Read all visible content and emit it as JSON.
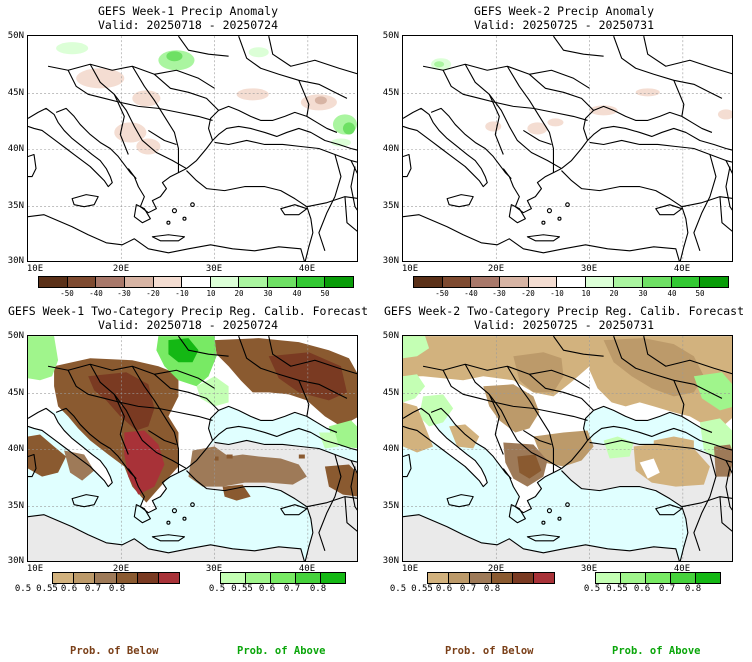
{
  "panels": [
    {
      "title": "GEFS Week-1 Precip Anomaly",
      "valid": "Valid: 20250718 - 20250724"
    },
    {
      "title": "GEFS Week-2 Precip Anomaly",
      "valid": "Valid: 20250725 - 20250731"
    },
    {
      "title": "GEFS Week-1 Two-Category Precip Reg. Calib. Forecast",
      "valid": "Valid: 20250718 - 20250724"
    },
    {
      "title": "GEFS Week-2 Two-Category Precip Reg. Calib. Forecast",
      "valid": "Valid: 20250725 - 20250731"
    }
  ],
  "lat_labels": [
    "50N",
    "45N",
    "40N",
    "35N",
    "30N"
  ],
  "lon_labels": [
    "10E",
    "20E",
    "30E",
    "40E"
  ],
  "anomaly_colorbar": {
    "labels": [
      "-50",
      "-40",
      "-30",
      "-20",
      "-10",
      "10",
      "20",
      "30",
      "40",
      "50"
    ],
    "colors": [
      "#5a3018",
      "#7e4a30",
      "#a8786a",
      "#d7b4a4",
      "#f4ddd2",
      "#ffffff",
      "#dcffd7",
      "#aaf5a0",
      "#6ee064",
      "#32c832",
      "#089c08"
    ]
  },
  "prob_labels": [
    "0.5",
    "0.55",
    "0.6",
    "0.7",
    "0.8"
  ],
  "below_colors": [
    "#d2b27e",
    "#bc9a6a",
    "#9e7a58",
    "#8a5a30",
    "#7a3a22",
    "#a83238"
  ],
  "above_colors": [
    "#c4ffb4",
    "#a0f58c",
    "#78ea64",
    "#46d23c",
    "#14b814"
  ],
  "legend": {
    "below": "Prob. of Below",
    "above": "Prob. of Above"
  },
  "map_colors": {
    "sea_prob": "#e0ffff",
    "no_data": "#eaeaea",
    "neutral_land": "#ffffff",
    "below_color": "#7a3f18",
    "above_color": "#0aa60a"
  }
}
